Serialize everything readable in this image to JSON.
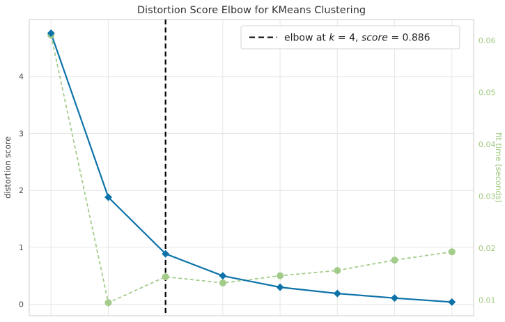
{
  "chart_data": {
    "type": "line",
    "title": "Distortion Score Elbow for KMeans Clustering",
    "ylabel_left": "distortion score",
    "ylabel_right": "fit time (seconds)",
    "x": [
      2,
      3,
      4,
      5,
      6,
      7,
      8,
      9
    ],
    "xlim": [
      1.62,
      9.38
    ],
    "ylim_left": [
      -0.2,
      5.0
    ],
    "ylim_right": [
      0.007,
      0.064
    ],
    "left_ticks": [
      0,
      1,
      2,
      3,
      4
    ],
    "right_ticks": [
      0.01,
      0.02,
      0.03,
      0.04,
      0.05,
      0.06
    ],
    "grid": true,
    "legend_position": "upper right",
    "series": [
      {
        "name": "distortion_score",
        "axis": "left",
        "color": "#0e73a9",
        "marker": "diamond",
        "line_style": "solid",
        "values": [
          4.76,
          1.88,
          0.886,
          0.5,
          0.3,
          0.19,
          0.11,
          0.04
        ]
      },
      {
        "name": "fit_time",
        "axis": "right",
        "color": "#a3cc8b",
        "marker": "circle",
        "line_style": "dashed",
        "values": [
          0.061,
          0.0095,
          0.0145,
          0.0133,
          0.0147,
          0.0157,
          0.0177,
          0.0193
        ]
      }
    ],
    "elbow": {
      "k": 4,
      "score": 0.886,
      "line_color": "#000000",
      "line_style": "dashed"
    },
    "legend": {
      "parts": [
        {
          "text": "elbow at ",
          "italic": false
        },
        {
          "text": "k",
          "italic": true
        },
        {
          "text": " = 4, ",
          "italic": false
        },
        {
          "text": "score",
          "italic": true
        },
        {
          "text": " = 0.886",
          "italic": false
        }
      ]
    },
    "colors": {
      "grid": "#e6e6e6",
      "border": "#d4d4d4",
      "tick_left": "#4a4a4a",
      "tick_right": "#a1cb82",
      "title": "#333333",
      "legend_text": "#222222"
    }
  }
}
